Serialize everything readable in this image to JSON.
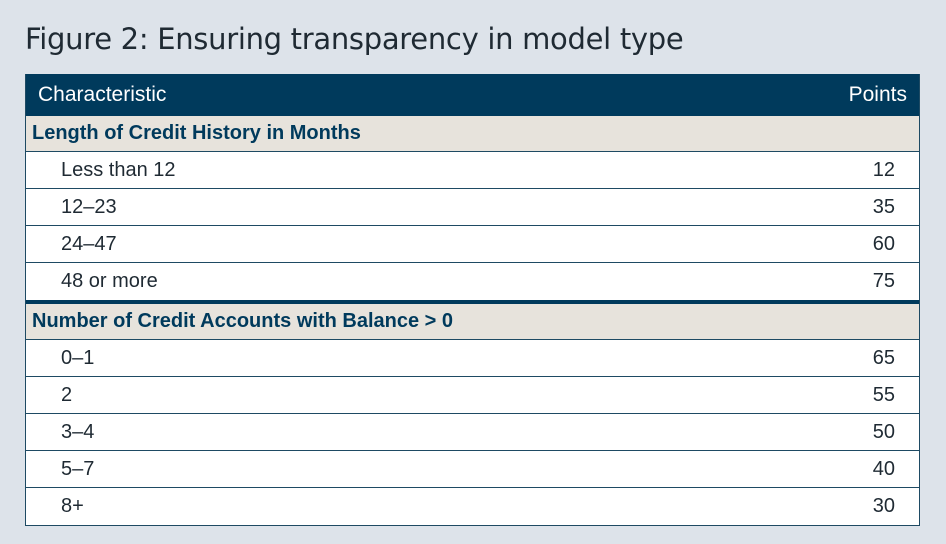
{
  "title": "Figure 2: Ensuring transparency in model type",
  "table": {
    "headers": {
      "characteristic": "Characteristic",
      "points": "Points"
    },
    "sections": [
      {
        "label": "Length of Credit History in Months",
        "rows": [
          {
            "range": "Less than 12",
            "points": "12"
          },
          {
            "range": "12–23",
            "points": "35"
          },
          {
            "range": "24–47",
            "points": "60"
          },
          {
            "range": "48 or more",
            "points": "75"
          }
        ]
      },
      {
        "label": "Number of Credit Accounts with Balance > 0",
        "rows": [
          {
            "range": "0–1",
            "points": "65"
          },
          {
            "range": "2",
            "points": "55"
          },
          {
            "range": "3–4",
            "points": "50"
          },
          {
            "range": "5–7",
            "points": "40"
          },
          {
            "range": "8+",
            "points": "30"
          }
        ]
      }
    ]
  },
  "colors": {
    "header_bg": "#003a5c",
    "section_bg": "#e7e3dc",
    "page_bg": "#dde3ea"
  }
}
